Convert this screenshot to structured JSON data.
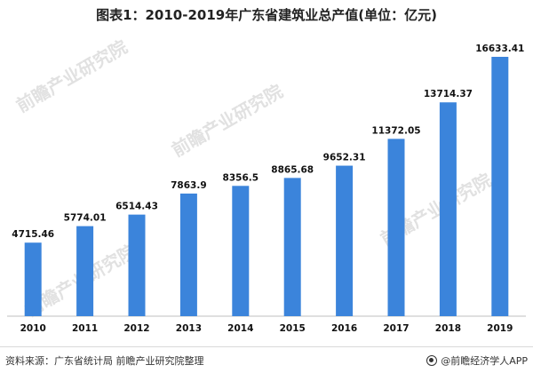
{
  "chart_data": {
    "type": "bar",
    "title": "图表1：2010-2019年广东省建筑业总产值(单位：亿元)",
    "categories": [
      "2010",
      "2011",
      "2012",
      "2013",
      "2014",
      "2015",
      "2016",
      "2017",
      "2018",
      "2019"
    ],
    "values": [
      4715.46,
      5774.01,
      6514.43,
      7863.9,
      8356.5,
      8865.68,
      9652.31,
      11372.05,
      13714.37,
      16633.41
    ],
    "value_labels": [
      "4715.46",
      "5774.01",
      "6514.43",
      "7863.9",
      "8356.5",
      "8865.68",
      "9652.31",
      "11372.05",
      "13714.37",
      "16633.41"
    ],
    "ylim": [
      0,
      18000
    ],
    "grid": false,
    "legend": "none"
  },
  "colors": {
    "bar": "#3B84DB",
    "axis": "#BFBFBF",
    "label": "#111111"
  },
  "footer": {
    "source": "资料来源：广东省统计局 前瞻产业研究院整理",
    "brand": "@前瞻经济学人APP",
    "brand_icon": "brand-circle-icon"
  },
  "watermark": {
    "text": "前瞻产业研究院"
  }
}
